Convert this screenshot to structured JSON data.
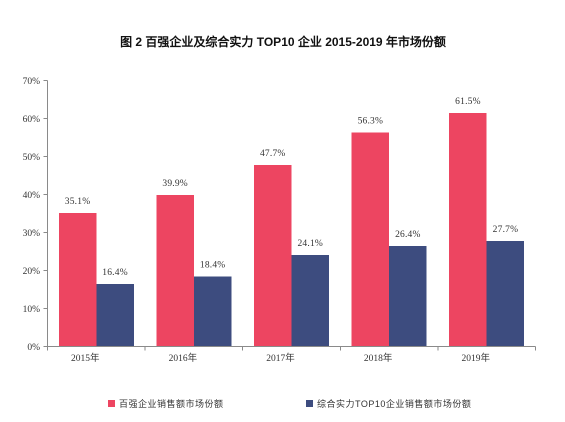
{
  "chart_data": {
    "type": "bar",
    "title": "图 2 百强企业及综合实力 TOP10 企业 2015-2019 年市场份额",
    "categories": [
      "2015年",
      "2016年",
      "2017年",
      "2018年",
      "2019年"
    ],
    "series": [
      {
        "name": "百强企业销售额市场份额",
        "values": [
          35.1,
          39.9,
          47.7,
          56.3,
          61.5
        ],
        "data_labels": [
          "35.1%",
          "39.9%",
          "47.7%",
          "56.3%",
          "61.5%"
        ],
        "color": "#ED4561"
      },
      {
        "name": "综合实力TOP10企业销售额市场份额",
        "values": [
          16.4,
          18.4,
          24.1,
          26.4,
          27.7
        ],
        "data_labels": [
          "16.4%",
          "18.4%",
          "24.1%",
          "26.4%",
          "27.7%"
        ],
        "color": "#3D4C7F"
      }
    ],
    "ylim": [
      0,
      70
    ],
    "yticks": [
      0,
      10,
      20,
      30,
      40,
      50,
      60,
      70
    ],
    "ytick_labels": [
      "0%",
      "10%",
      "20%",
      "30%",
      "40%",
      "50%",
      "60%",
      "70%"
    ],
    "grid": false,
    "legend": "bottom"
  }
}
